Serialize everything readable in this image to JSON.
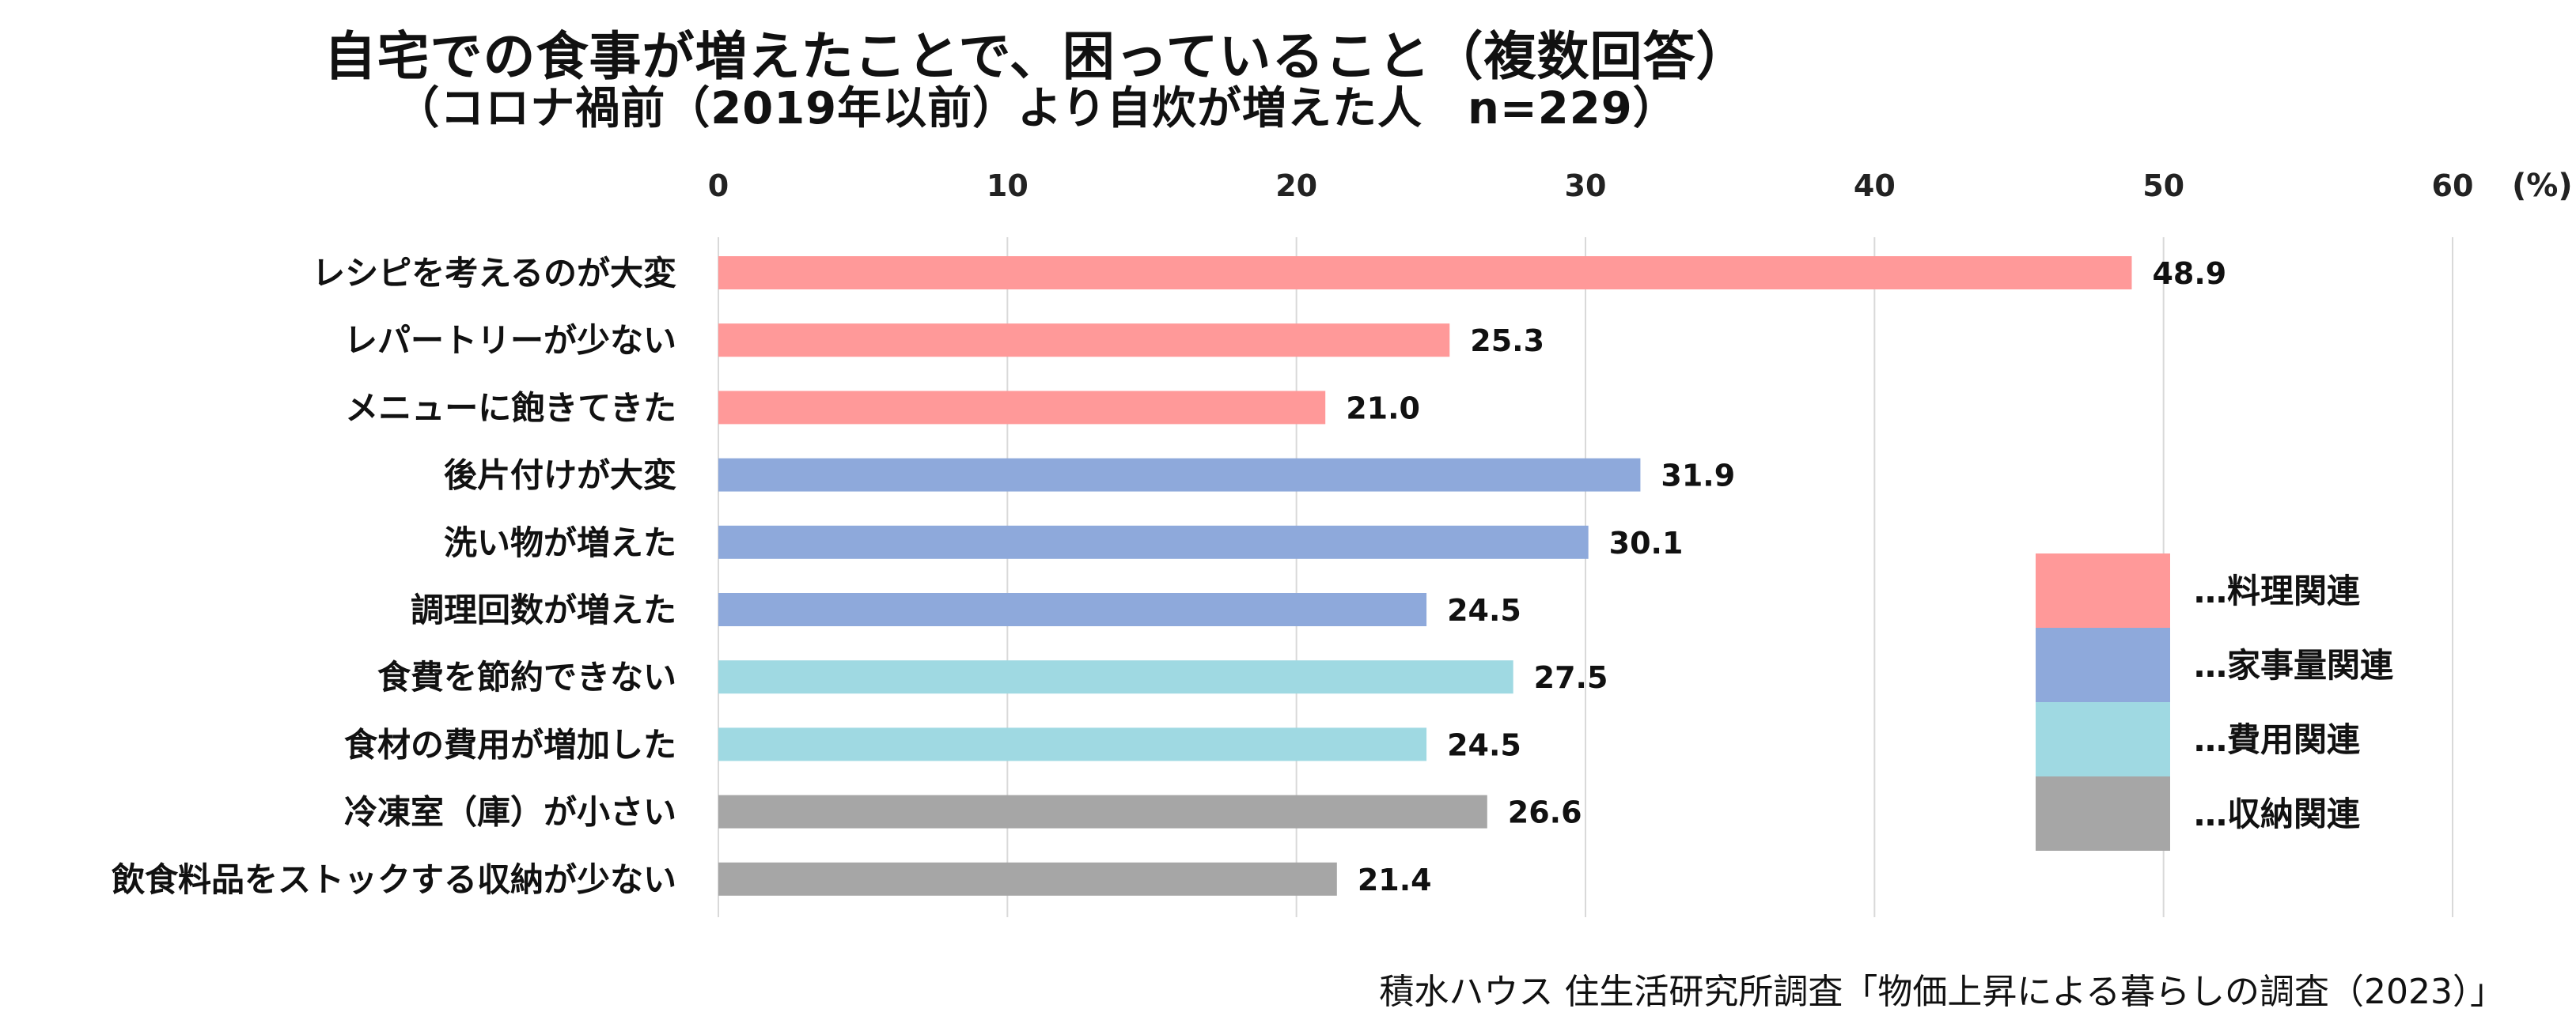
{
  "chart_data": {
    "type": "bar",
    "orientation": "horizontal",
    "title": "自宅での食事が増えたことで、困っていること（複数回答）",
    "subtitle": "（コロナ禍前（2019年以前）より自炊が増えた人　n=229）",
    "unit_label": "(%)",
    "xlim": [
      0,
      60
    ],
    "xticks": [
      0,
      10,
      20,
      30,
      40,
      50,
      60
    ],
    "grid": true,
    "legend_position": "right",
    "categories": [
      "レシピを考えるのが大変",
      "レパートリーが少ない",
      "メニューに飽きてきた",
      "後片付けが大変",
      "洗い物が増えた",
      "調理回数が増えた",
      "食費を節約できない",
      "食材の費用が増加した",
      "冷凍室（庫）が小さい",
      "飲食料品をストックする収納が少ない"
    ],
    "values": [
      48.9,
      25.3,
      21.0,
      31.9,
      30.1,
      24.5,
      27.5,
      24.5,
      26.6,
      21.4
    ],
    "value_labels": [
      "48.9",
      "25.3",
      "21.0",
      "31.9",
      "30.1",
      "24.5",
      "27.5",
      "24.5",
      "26.6",
      "21.4"
    ],
    "groups": [
      0,
      0,
      0,
      1,
      1,
      1,
      2,
      2,
      3,
      3
    ],
    "legend": [
      {
        "label": "…料理関連",
        "color": "#FF9999"
      },
      {
        "label": "…家事量関連",
        "color": "#8EA9DB"
      },
      {
        "label": "…費用関連",
        "color": "#9FD9E2"
      },
      {
        "label": "…収納関連",
        "color": "#A6A6A6"
      }
    ]
  },
  "source": "積水ハウス 住生活研究所調査「物価上昇による暮らしの調査（2023）」"
}
